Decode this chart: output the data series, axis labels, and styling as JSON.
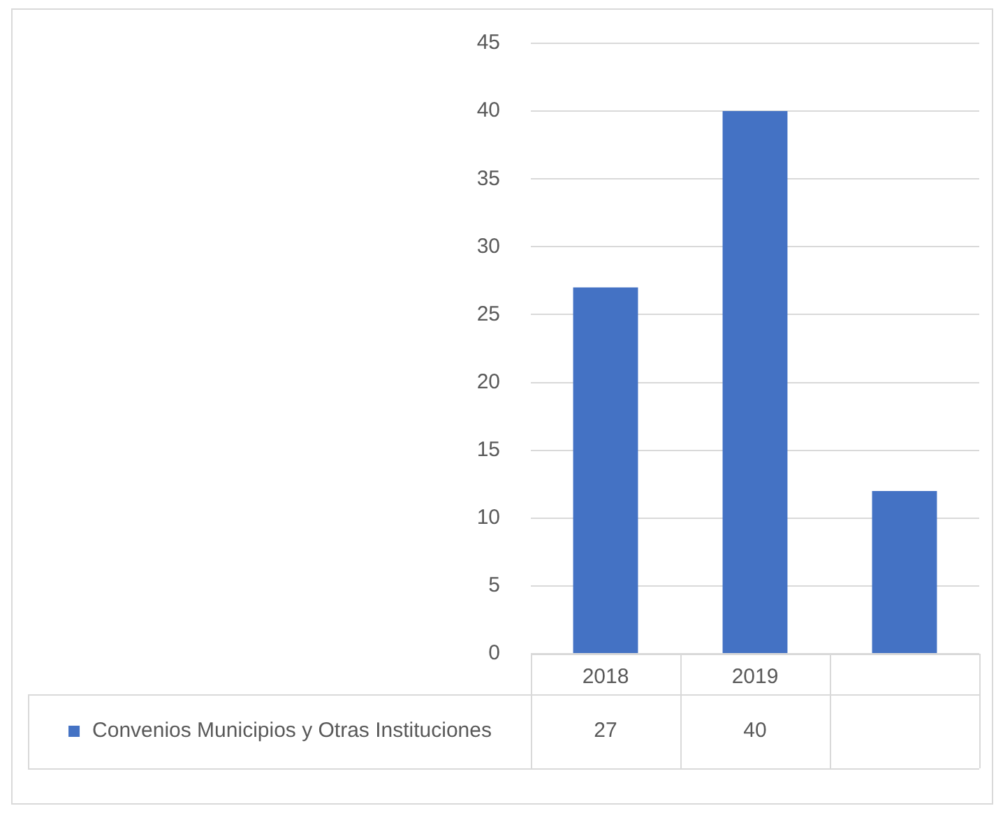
{
  "chart_data": {
    "type": "bar",
    "categories": [
      "2018",
      "2019",
      null
    ],
    "series": [
      {
        "name": "Convenios Municipios y Otras Instituciones",
        "color": "#4472c4",
        "values": [
          27,
          40,
          12
        ],
        "value_labels": [
          "27",
          "40",
          null
        ]
      }
    ],
    "ylim": [
      0,
      45
    ],
    "yticks": [
      0,
      5,
      10,
      15,
      20,
      25,
      30,
      35,
      40,
      45
    ],
    "grid": "y",
    "legend": "bottom"
  }
}
